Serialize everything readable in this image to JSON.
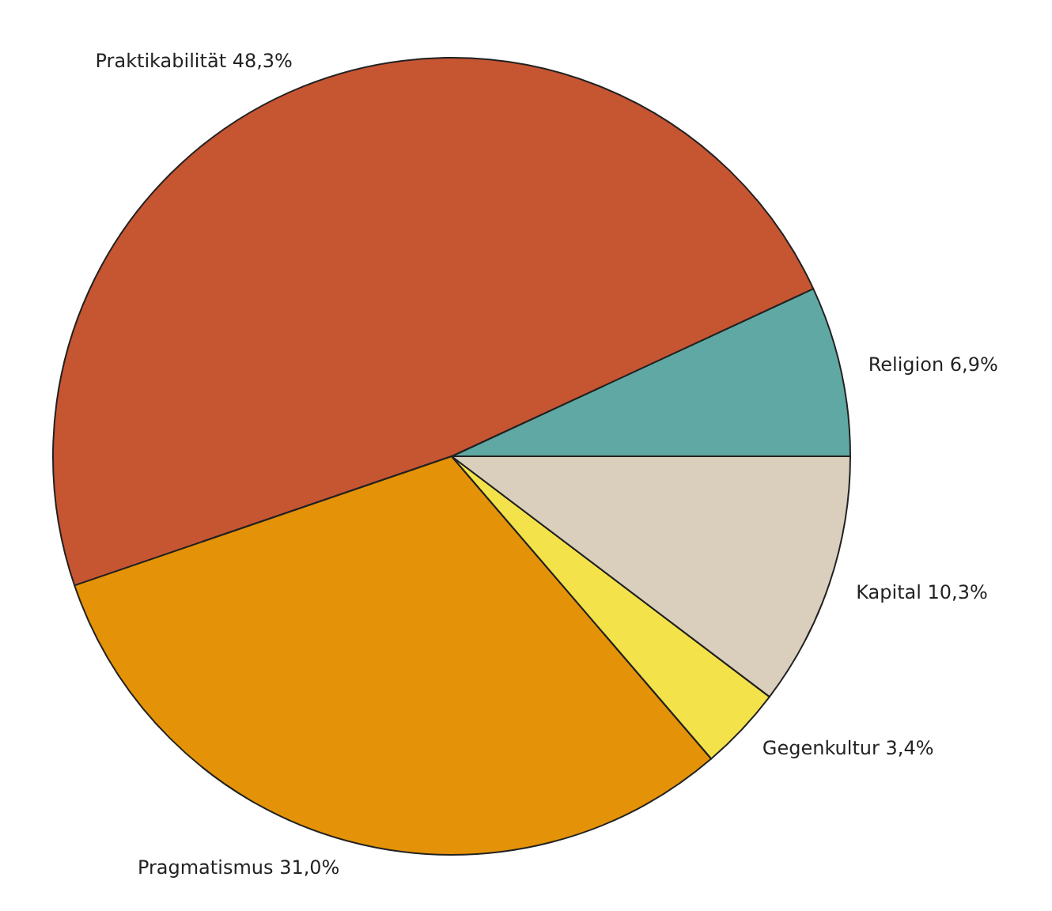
{
  "chart_data": {
    "type": "pie",
    "categories": [
      "Religion",
      "Praktikabilität",
      "Pragmatismus",
      "Gegenkultur",
      "Kapital"
    ],
    "values": [
      6.9,
      48.3,
      31.0,
      3.4,
      10.3
    ],
    "value_labels": [
      "6,9%",
      "48,3%",
      "31,0%",
      "3,4%",
      "10,3%"
    ],
    "colors": [
      "#5fa8a3",
      "#c65532",
      "#e49207",
      "#f4e24a",
      "#d9cfbc"
    ],
    "legend": false
  }
}
